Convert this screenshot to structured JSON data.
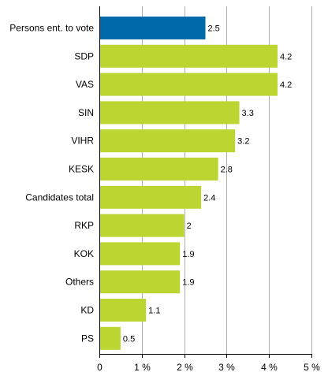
{
  "chart_data": {
    "type": "bar",
    "orientation": "horizontal",
    "categories": [
      "Persons ent. to vote",
      "SDP",
      "VAS",
      "SIN",
      "VIHR",
      "KESK",
      "Candidates total",
      "RKP",
      "KOK",
      "Others",
      "KD",
      "PS"
    ],
    "values": [
      2.5,
      4.2,
      4.2,
      3.3,
      3.2,
      2.8,
      2.4,
      2,
      1.9,
      1.9,
      1.1,
      0.5
    ],
    "data_labels": [
      "2.5",
      "4.2",
      "4.2",
      "3.3",
      "3.2",
      "2.8",
      "2.4",
      "2",
      "1.9",
      "1.9",
      "1.1",
      "0.5"
    ],
    "xlim": [
      0,
      5
    ],
    "x_ticks": [
      0,
      1,
      2,
      3,
      4,
      5
    ],
    "x_tick_labels": [
      "0",
      "1 %",
      "2 %",
      "3 %",
      "4 %",
      "5 %"
    ],
    "grid": "vertical",
    "colors": {
      "highlight": "#0069aa",
      "bar": "#bcd530",
      "grid": "#b0b0b0",
      "axis": "#000000"
    },
    "highlight_index": 0
  }
}
